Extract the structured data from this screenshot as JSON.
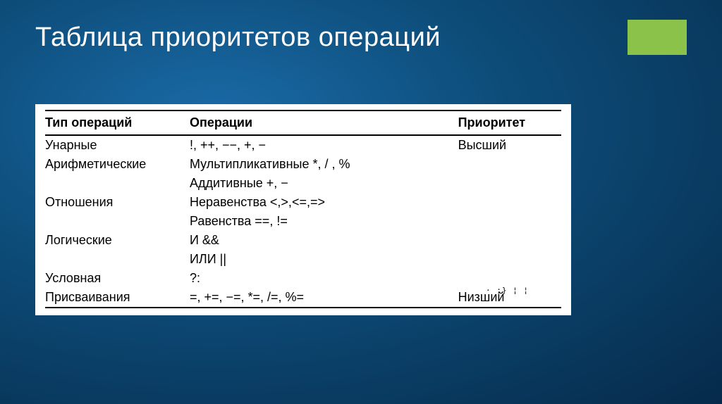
{
  "slide": {
    "title": "Таблица приоритетов операций",
    "accent_color": "#8bc34a",
    "background_gradient": [
      "#1a6ba8",
      "#0d4d7a",
      "#062a4a"
    ]
  },
  "table": {
    "type": "table",
    "background_color": "#ffffff",
    "text_color": "#000000",
    "border_color": "#000000",
    "font_size": 18,
    "columns": [
      {
        "label": "Тип операций",
        "width": "28%"
      },
      {
        "label": "Операции",
        "width": "52%"
      },
      {
        "label": "Приоритет",
        "width": "20%"
      }
    ],
    "rows": [
      {
        "c0": "Унарные",
        "c1": "!, ++, −−, +, −",
        "c2": "Высший"
      },
      {
        "c0": "Арифметические",
        "c1": "Мультипликативные *, / , %",
        "c2": ""
      },
      {
        "c0": "",
        "c1": "Аддитивные +, −",
        "c2": ""
      },
      {
        "c0": "Отношения",
        "c1": "Неравенства <,>,<=,=>",
        "c2": ""
      },
      {
        "c0": "",
        "c1": "Равенства ==, !=",
        "c2": ""
      },
      {
        "c0": "Логические",
        "c1": "И &&",
        "c2": ""
      },
      {
        "c0": "",
        "c1": "ИЛИ ||",
        "c2": ""
      },
      {
        "c0": "Условная",
        "c1": "?:",
        "c2": ""
      },
      {
        "c0": "Присваивания",
        "c1": "=, +=, −=, *=, /=, %=",
        "c2": "Низший"
      }
    ]
  },
  "artifact_text": "· ;} ¦ ¦"
}
